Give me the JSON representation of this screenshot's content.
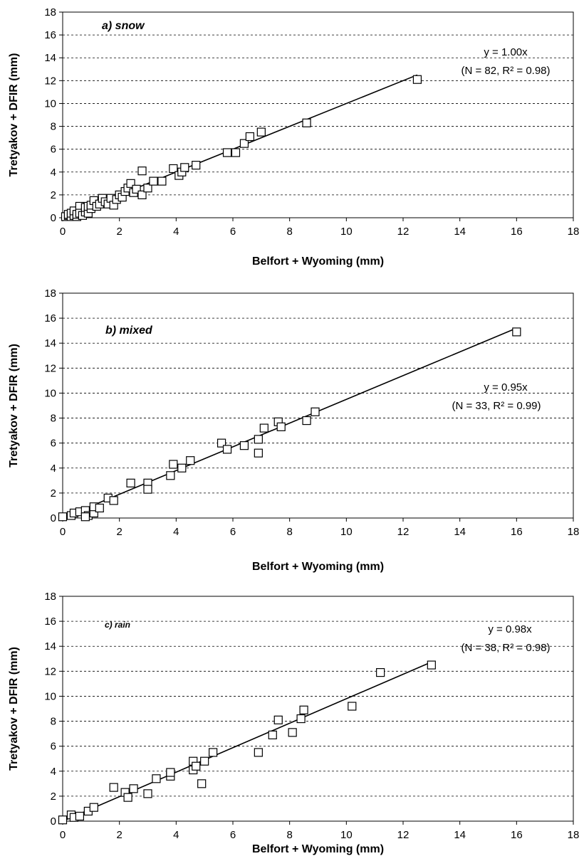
{
  "chart_data": [
    {
      "type": "scatter",
      "title": "a) snow",
      "xlabel": "Belfort + Wyoming (mm)",
      "ylabel": "Tretyakov + DFIR (mm)",
      "xlim": [
        0,
        18
      ],
      "ylim": [
        0,
        18
      ],
      "xticks": [
        0,
        2,
        4,
        6,
        8,
        10,
        12,
        14,
        16,
        18
      ],
      "yticks": [
        0,
        2,
        4,
        6,
        8,
        10,
        12,
        14,
        16,
        18
      ],
      "grid": "horizontal dashed",
      "fit": {
        "slope": 1.0,
        "equation": "y = 1.00x",
        "stats": "(N = 82, R² = 0.98)",
        "x_end": 12.5
      },
      "points": [
        [
          0.1,
          0.1
        ],
        [
          0.2,
          0.2
        ],
        [
          0.2,
          0.3
        ],
        [
          0.3,
          0.1
        ],
        [
          0.3,
          0.4
        ],
        [
          0.4,
          0.2
        ],
        [
          0.4,
          0.6
        ],
        [
          0.5,
          0.1
        ],
        [
          0.5,
          0.3
        ],
        [
          0.6,
          1.0
        ],
        [
          0.6,
          0.4
        ],
        [
          0.7,
          0.2
        ],
        [
          0.8,
          0.5
        ],
        [
          0.8,
          0.9
        ],
        [
          0.9,
          0.4
        ],
        [
          0.9,
          1.0
        ],
        [
          1.0,
          0.8
        ],
        [
          1.0,
          1.1
        ],
        [
          1.1,
          1.5
        ],
        [
          1.2,
          1.0
        ],
        [
          1.3,
          1.2
        ],
        [
          1.4,
          1.7
        ],
        [
          1.5,
          1.4
        ],
        [
          1.6,
          1.2
        ],
        [
          1.7,
          1.7
        ],
        [
          1.8,
          1.1
        ],
        [
          1.9,
          1.6
        ],
        [
          2.0,
          2.0
        ],
        [
          2.1,
          1.8
        ],
        [
          2.2,
          2.3
        ],
        [
          2.3,
          2.6
        ],
        [
          2.4,
          3.0
        ],
        [
          2.5,
          2.2
        ],
        [
          2.6,
          2.5
        ],
        [
          2.8,
          4.1
        ],
        [
          2.8,
          2.0
        ],
        [
          3.0,
          2.6
        ],
        [
          3.2,
          3.2
        ],
        [
          3.5,
          3.2
        ],
        [
          3.9,
          4.3
        ],
        [
          4.1,
          3.7
        ],
        [
          4.2,
          4.0
        ],
        [
          4.3,
          4.4
        ],
        [
          4.7,
          4.6
        ],
        [
          5.8,
          5.7
        ],
        [
          6.1,
          5.7
        ],
        [
          6.4,
          6.5
        ],
        [
          6.6,
          7.1
        ],
        [
          7.0,
          7.5
        ],
        [
          8.6,
          8.3
        ],
        [
          12.5,
          12.1
        ]
      ]
    },
    {
      "type": "scatter",
      "title": "b) mixed",
      "xlabel": "Belfort + Wyoming (mm)",
      "ylabel": "Tretyakov + DFIR (mm)",
      "xlim": [
        0,
        18
      ],
      "ylim": [
        0,
        18
      ],
      "xticks": [
        0,
        2,
        4,
        6,
        8,
        10,
        12,
        14,
        16,
        18
      ],
      "yticks": [
        0,
        2,
        4,
        6,
        8,
        10,
        12,
        14,
        16,
        18
      ],
      "grid": "horizontal dashed",
      "fit": {
        "slope": 0.95,
        "equation": "y = 0.95x",
        "stats": "(N = 33, R² = 0.99)",
        "x_end": 16.0
      },
      "points": [
        [
          0.0,
          0.1
        ],
        [
          0.3,
          0.2
        ],
        [
          0.4,
          0.4
        ],
        [
          0.6,
          0.5
        ],
        [
          0.8,
          0.6
        ],
        [
          0.9,
          0.2
        ],
        [
          0.8,
          0.1
        ],
        [
          1.1,
          0.4
        ],
        [
          1.1,
          0.9
        ],
        [
          1.3,
          0.8
        ],
        [
          1.6,
          1.6
        ],
        [
          1.8,
          1.4
        ],
        [
          2.4,
          2.8
        ],
        [
          3.0,
          2.8
        ],
        [
          3.0,
          2.3
        ],
        [
          3.8,
          3.4
        ],
        [
          3.9,
          4.3
        ],
        [
          4.2,
          4.0
        ],
        [
          4.5,
          4.6
        ],
        [
          5.6,
          6.0
        ],
        [
          5.8,
          5.5
        ],
        [
          6.4,
          5.8
        ],
        [
          6.9,
          6.3
        ],
        [
          6.9,
          5.2
        ],
        [
          7.1,
          7.2
        ],
        [
          7.6,
          7.7
        ],
        [
          7.7,
          7.3
        ],
        [
          8.6,
          7.8
        ],
        [
          8.9,
          8.5
        ],
        [
          16.0,
          14.9
        ]
      ]
    },
    {
      "type": "scatter",
      "title": "c) rain",
      "xlabel": "Belfort + Wyoming (mm)",
      "ylabel": "Tretyakov + DFIR (mm)",
      "xlim": [
        0,
        18
      ],
      "ylim": [
        0,
        18
      ],
      "xticks": [
        0,
        2,
        4,
        6,
        8,
        10,
        12,
        14,
        16,
        18
      ],
      "yticks": [
        0,
        2,
        4,
        6,
        8,
        10,
        12,
        14,
        16,
        18
      ],
      "grid": "horizontal dashed",
      "fit": {
        "slope": 0.98,
        "equation": "y = 0.98x",
        "stats": "(N = 38, R² = 0.98)",
        "x_end": 13.0
      },
      "points": [
        [
          0.0,
          0.1
        ],
        [
          0.3,
          0.5
        ],
        [
          0.4,
          0.3
        ],
        [
          0.6,
          0.4
        ],
        [
          0.9,
          0.8
        ],
        [
          1.1,
          1.1
        ],
        [
          1.8,
          2.7
        ],
        [
          2.2,
          2.3
        ],
        [
          2.3,
          1.9
        ],
        [
          2.5,
          2.6
        ],
        [
          3.0,
          2.2
        ],
        [
          3.3,
          3.4
        ],
        [
          3.8,
          3.6
        ],
        [
          3.8,
          3.9
        ],
        [
          4.6,
          4.1
        ],
        [
          4.6,
          4.8
        ],
        [
          4.7,
          4.4
        ],
        [
          4.9,
          3.0
        ],
        [
          5.0,
          4.8
        ],
        [
          5.3,
          5.5
        ],
        [
          6.9,
          5.5
        ],
        [
          7.4,
          6.9
        ],
        [
          7.6,
          8.1
        ],
        [
          8.1,
          7.1
        ],
        [
          8.4,
          8.2
        ],
        [
          8.5,
          8.9
        ],
        [
          10.2,
          9.2
        ],
        [
          11.2,
          11.9
        ],
        [
          13.0,
          12.5
        ]
      ]
    }
  ]
}
